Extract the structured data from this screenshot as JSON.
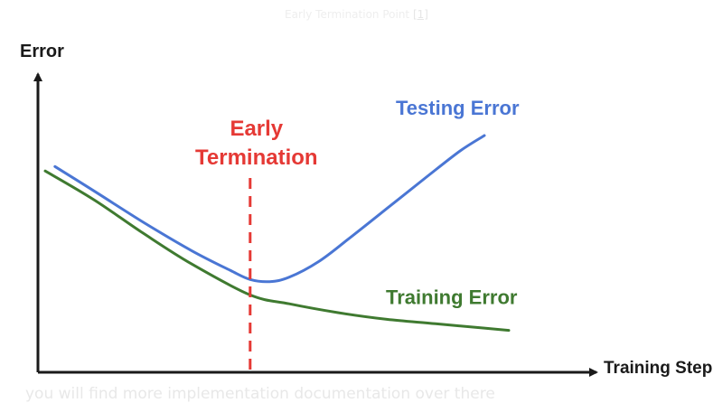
{
  "caption": {
    "text": "Early Termination Point",
    "ref": "[1]"
  },
  "footer_text": "you will find more implementation documentation over there",
  "chart_data": {
    "type": "line",
    "title": "",
    "xlabel": "Training Steps",
    "ylabel": "Error",
    "xlim": [
      0,
      100
    ],
    "ylim": [
      0,
      100
    ],
    "grid": false,
    "series": [
      {
        "name": "Testing Error",
        "color": "#4a76d4",
        "x": [
          2,
          10,
          20,
          30,
          38,
          42,
          46,
          50,
          56,
          62,
          70,
          78,
          85,
          90
        ],
        "y": [
          86,
          75,
          61,
          48,
          39,
          35,
          34,
          36,
          43,
          53,
          67,
          81,
          93,
          100
        ]
      },
      {
        "name": "Training Error",
        "color": "#3f7a30",
        "x": [
          0,
          10,
          20,
          30,
          42,
          50,
          60,
          70,
          80,
          90,
          95
        ],
        "y": [
          84,
          71,
          56,
          42,
          28,
          24,
          20,
          17,
          15,
          13,
          12
        ]
      }
    ],
    "annotation": {
      "text_lines": [
        "Early",
        "Termination"
      ],
      "x": 42,
      "color": "#e53935"
    },
    "colors": {
      "axis": "#1a1a1a",
      "testing": "#4a76d4",
      "training": "#3f7a30",
      "termination": "#e53935"
    }
  }
}
